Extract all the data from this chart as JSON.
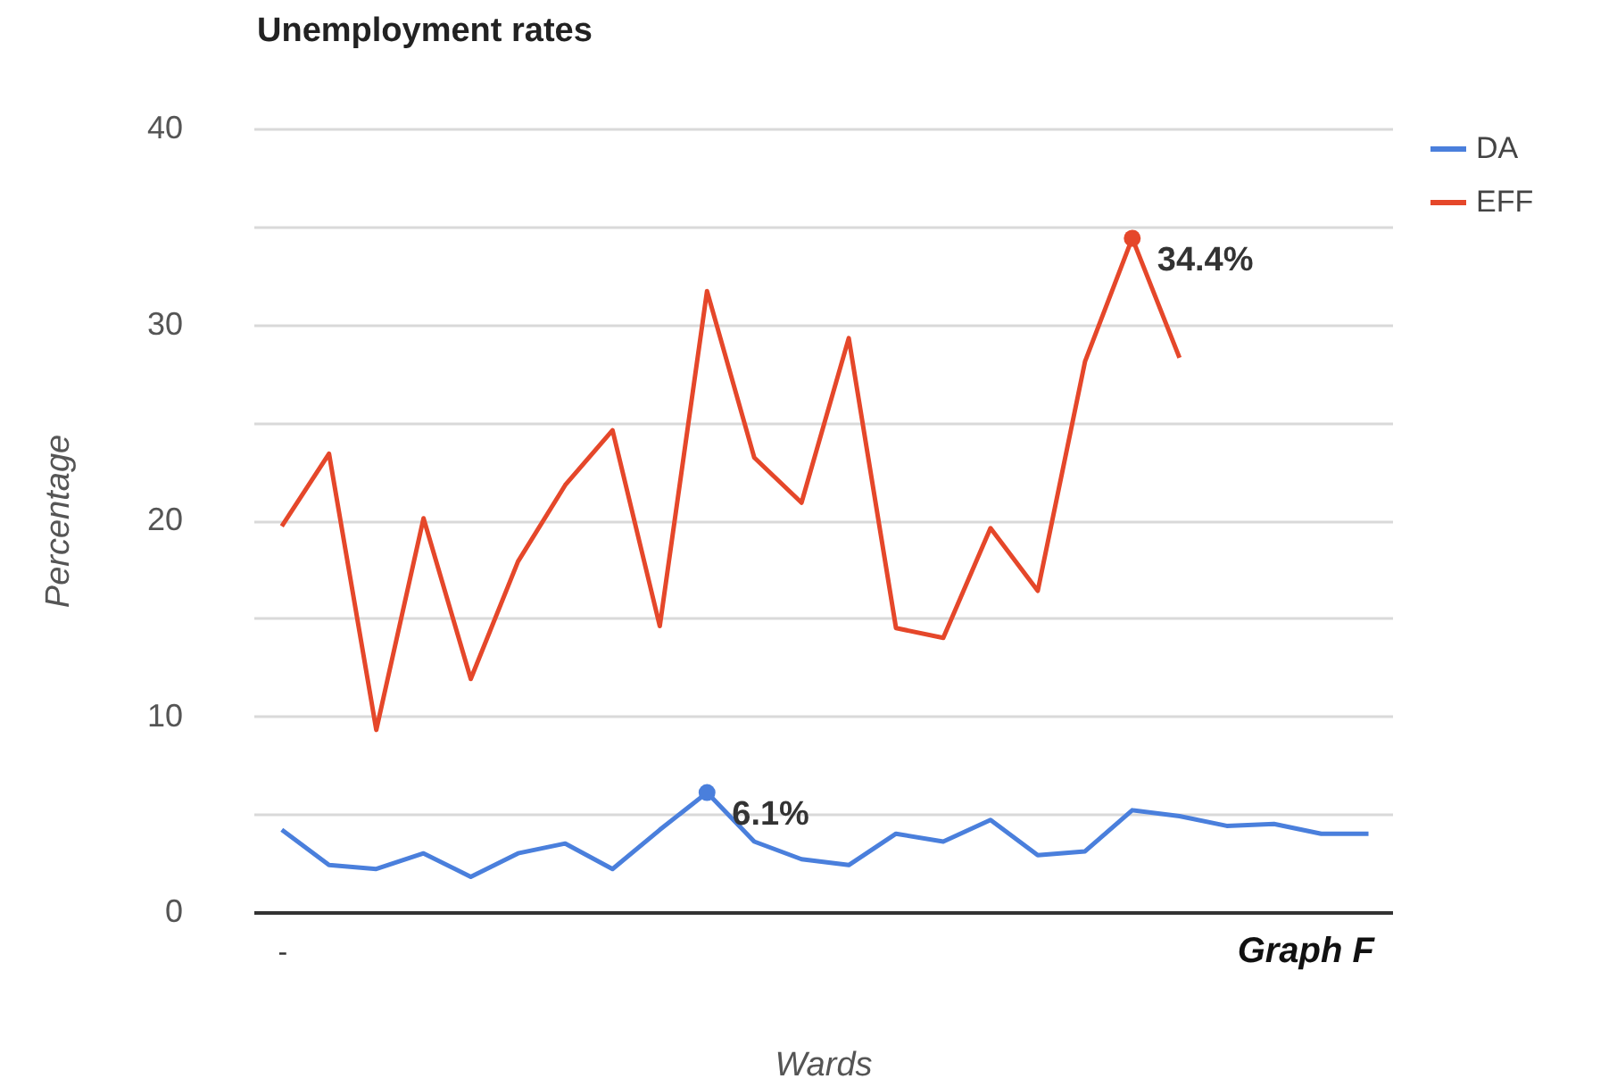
{
  "chart_data": {
    "type": "line",
    "title": "Unemployment rates",
    "xlabel": "Wards",
    "ylabel": "Percentage",
    "categories": [
      "-",
      null,
      null,
      null,
      null,
      null,
      null,
      null,
      null,
      null,
      null,
      null,
      null,
      null,
      null,
      null,
      null,
      null,
      null,
      null,
      null,
      null,
      null,
      null
    ],
    "series": [
      {
        "name": "DA",
        "color": "#4a7fdc",
        "values": [
          4.2,
          2.4,
          2.2,
          3.0,
          1.8,
          3.0,
          3.5,
          2.2,
          4.2,
          6.1,
          3.6,
          2.7,
          2.4,
          4.0,
          3.6,
          4.7,
          2.9,
          3.1,
          5.2,
          4.9,
          4.4,
          4.5,
          4.0,
          4.0
        ],
        "value_labels": [
          null,
          null,
          null,
          null,
          null,
          null,
          null,
          null,
          null,
          "6.1%",
          null,
          null,
          null,
          null,
          null,
          null,
          null,
          null,
          null,
          null,
          null,
          null,
          null,
          null
        ]
      },
      {
        "name": "EFF",
        "color": "#e5472a",
        "values": [
          19.7,
          23.4,
          9.3,
          20.1,
          11.9,
          17.9,
          21.8,
          24.6,
          14.6,
          31.7,
          23.2,
          20.9,
          29.3,
          14.5,
          14.0,
          19.6,
          16.4,
          28.1,
          34.4,
          28.3,
          null,
          null,
          null,
          null
        ],
        "value_labels": [
          null,
          null,
          null,
          null,
          null,
          null,
          null,
          null,
          null,
          null,
          null,
          null,
          null,
          null,
          null,
          null,
          null,
          null,
          "34.4%",
          null,
          null,
          null,
          null,
          null
        ]
      }
    ],
    "ylim": [
      0,
      40
    ],
    "yticks": [
      0,
      {
        "value": 5,
        "label": null
      },
      10,
      {
        "value": 15,
        "label": null
      },
      20,
      {
        "value": 25,
        "label": null
      },
      30,
      {
        "value": 35,
        "label": null
      },
      40
    ],
    "grid": "y",
    "legend": "right",
    "marker": "none",
    "line_style": "solid",
    "annotations": [
      "Graph F"
    ]
  }
}
